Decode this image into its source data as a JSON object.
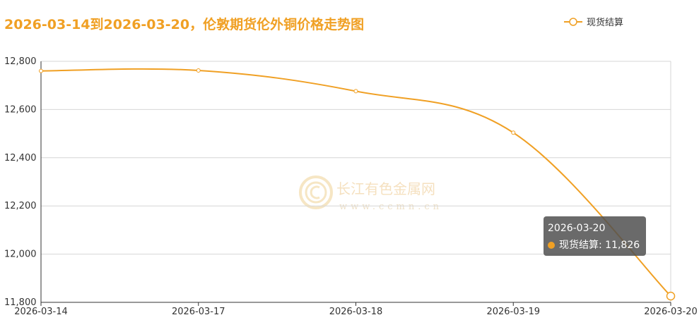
{
  "chart_data": {
    "type": "line",
    "title": "2026-03-14到2026-03-20，伦敦期货伦外铜价格走势图",
    "categories": [
      "2026-03-14",
      "2026-03-17",
      "2026-03-18",
      "2026-03-19",
      "2026-03-20"
    ],
    "series": [
      {
        "name": "现货结算",
        "values": [
          12760,
          12762,
          12676,
          12504,
          11826
        ],
        "color": "#f0a024"
      }
    ],
    "yticks": [
      "12,800",
      "12,600",
      "12,400",
      "12,200",
      "12,000",
      "11,800"
    ],
    "ylim": [
      11800,
      12800
    ],
    "grid": true,
    "legend_position": "top-right",
    "smooth": true
  },
  "tooltip": {
    "date": "2026-03-20",
    "label": "现货结算: 11,826"
  },
  "watermark": {
    "name": "长江有色金属网",
    "url": "www.ccmn.cn"
  }
}
